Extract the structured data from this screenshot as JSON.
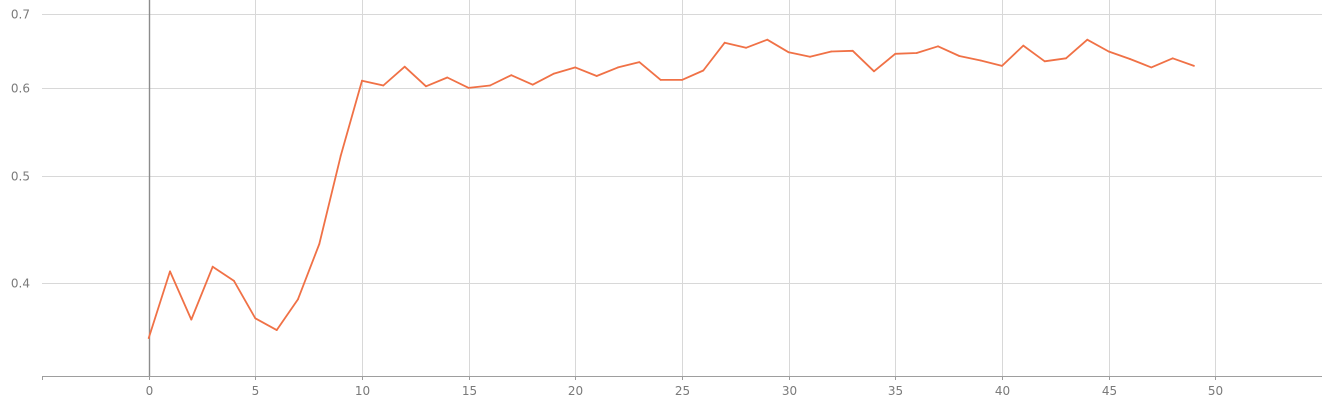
{
  "chart_data": {
    "type": "line",
    "title": "",
    "xlabel": "",
    "ylabel": "",
    "grid": true,
    "legend": "none",
    "xlim": [
      -5,
      55
    ],
    "ylim": [
      0.33,
      0.72
    ],
    "y_scale": "log",
    "x_ticks": [
      0,
      5,
      10,
      15,
      20,
      25,
      30,
      35,
      40,
      45,
      50
    ],
    "y_ticks": [
      0.4,
      0.5,
      0.6,
      0.7
    ],
    "y_tick_labels": [
      "0.4",
      "0.5",
      "0.6",
      "0.7"
    ],
    "x_tick_labels": [
      "0",
      "5",
      "10",
      "15",
      "20",
      "25",
      "30",
      "35",
      "40",
      "45",
      "50"
    ],
    "series": [
      {
        "color": "#f07146",
        "x": [
          0,
          1,
          2,
          3,
          4,
          5,
          6,
          7,
          8,
          9,
          10,
          11,
          12,
          13,
          14,
          15,
          16,
          17,
          18,
          19,
          20,
          21,
          22,
          23,
          24,
          25,
          26,
          27,
          28,
          29,
          30,
          31,
          32,
          33,
          34,
          35,
          36,
          37,
          38,
          39,
          40,
          41,
          42,
          43,
          44,
          45,
          46,
          47,
          48,
          49
        ],
        "values": [
          0.357,
          0.41,
          0.371,
          0.414,
          0.402,
          0.372,
          0.363,
          0.387,
          0.434,
          0.521,
          0.609,
          0.603,
          0.627,
          0.602,
          0.613,
          0.6,
          0.603,
          0.616,
          0.604,
          0.618,
          0.626,
          0.615,
          0.626,
          0.633,
          0.61,
          0.61,
          0.622,
          0.659,
          0.652,
          0.663,
          0.646,
          0.64,
          0.647,
          0.648,
          0.621,
          0.644,
          0.645,
          0.654,
          0.641,
          0.635,
          0.628,
          0.655,
          0.634,
          0.638,
          0.663,
          0.647,
          0.637,
          0.626,
          0.638,
          0.628
        ]
      }
    ]
  }
}
